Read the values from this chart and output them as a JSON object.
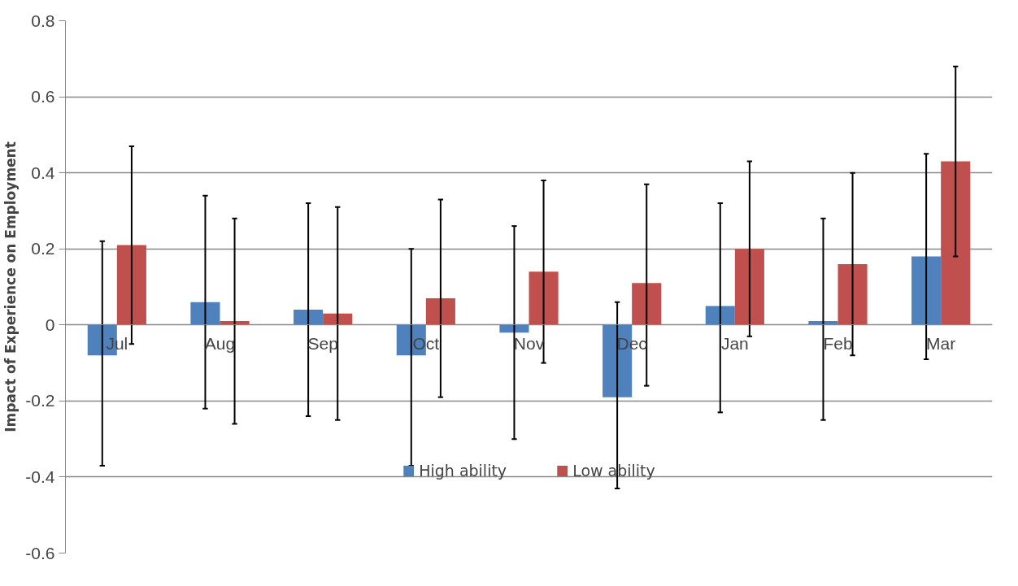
{
  "chart_data": {
    "type": "bar",
    "ylabel": "Impact of Experience on Employment",
    "categories": [
      "Jul",
      "Aug",
      "Sep",
      "Oct",
      "Nov",
      "Dec",
      "Jan",
      "Feb",
      "Mar"
    ],
    "series": [
      {
        "name": "High ability",
        "color": "#4f81bd",
        "values": [
          -0.08,
          0.06,
          0.04,
          -0.08,
          -0.02,
          -0.19,
          0.05,
          0.01,
          0.18
        ],
        "errors": [
          [
            -0.37,
            0.22
          ],
          [
            -0.22,
            0.34
          ],
          [
            -0.24,
            0.32
          ],
          [
            -0.37,
            0.2
          ],
          [
            -0.3,
            0.26
          ],
          [
            -0.43,
            0.06
          ],
          [
            -0.23,
            0.32
          ],
          [
            -0.25,
            0.28
          ],
          [
            -0.09,
            0.45
          ]
        ]
      },
      {
        "name": "Low ability",
        "color": "#c0504d",
        "values": [
          0.21,
          0.01,
          0.03,
          0.07,
          0.14,
          0.11,
          0.2,
          0.16,
          0.43
        ],
        "errors": [
          [
            -0.05,
            0.47
          ],
          [
            -0.26,
            0.28
          ],
          [
            -0.25,
            0.31
          ],
          [
            -0.19,
            0.33
          ],
          [
            -0.1,
            0.38
          ],
          [
            -0.16,
            0.37
          ],
          [
            -0.03,
            0.43
          ],
          [
            -0.08,
            0.4
          ],
          [
            0.18,
            0.68
          ]
        ]
      }
    ],
    "ylim": [
      -0.6,
      0.8
    ],
    "yticks": [
      -0.6,
      -0.4,
      -0.2,
      0,
      0.2,
      0.4,
      0.6,
      0.8
    ],
    "grid": "y",
    "legend": "bottom"
  }
}
